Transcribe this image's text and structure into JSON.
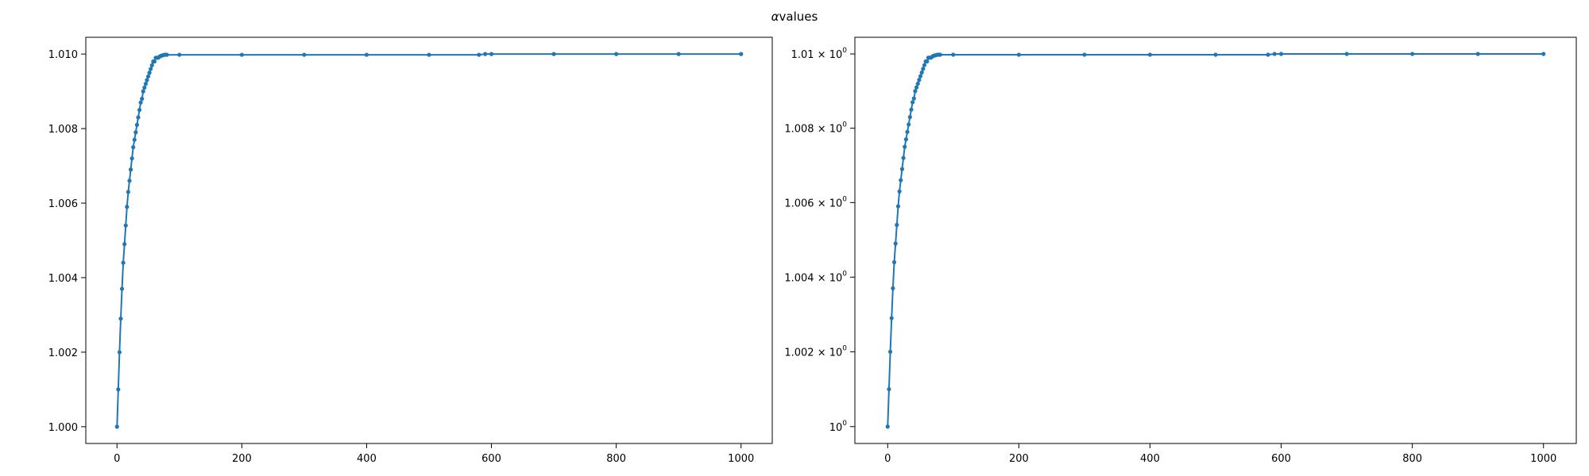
{
  "figure": {
    "title_prefix": "α",
    "title_main": "values"
  },
  "chart_data": [
    {
      "type": "line",
      "marker": "dot",
      "color": "#1f77b4",
      "yscale": "linear",
      "xlim": [
        -50,
        1050
      ],
      "ylim": [
        0.99955,
        1.01045
      ],
      "x_ticks": [
        0,
        200,
        400,
        600,
        800,
        1000
      ],
      "x_tick_labels": [
        "0",
        "200",
        "400",
        "600",
        "800",
        "1000"
      ],
      "y_ticks": [
        1.0,
        1.002,
        1.004,
        1.006,
        1.008,
        1.01
      ],
      "y_tick_labels": [
        "1.000",
        "1.002",
        "1.004",
        "1.006",
        "1.008",
        "1.010"
      ],
      "series": [
        {
          "x": [
            0,
            2,
            4,
            6,
            8,
            10,
            12,
            14,
            16,
            18,
            20,
            22,
            24,
            26,
            28,
            30,
            32,
            34,
            36,
            38,
            40,
            42,
            44,
            46,
            48,
            50,
            52,
            54,
            56,
            58,
            60,
            62,
            64,
            66,
            68,
            70,
            72,
            74,
            76,
            78,
            80,
            100,
            200,
            300,
            400,
            500,
            580,
            590,
            600,
            700,
            800,
            900,
            1000
          ],
          "y": [
            1.0,
            1.001,
            1.002,
            1.0029,
            1.0037,
            1.0044,
            1.0049,
            1.0054,
            1.0059,
            1.0063,
            1.0066,
            1.0069,
            1.0072,
            1.0075,
            1.0077,
            1.0079,
            1.0081,
            1.0083,
            1.0085,
            1.0087,
            1.0088,
            1.009,
            1.0091,
            1.0092,
            1.0093,
            1.0094,
            1.0095,
            1.0096,
            1.0097,
            1.0098,
            1.0098,
            1.0099,
            1.0099,
            1.0099,
            1.00993,
            1.00995,
            1.00996,
            1.00997,
            1.00998,
            1.00998,
            1.00998,
            1.00998,
            1.00998,
            1.00998,
            1.00998,
            1.00998,
            1.00998,
            1.01,
            1.01,
            1.01,
            1.01,
            1.01,
            1.01
          ]
        }
      ]
    },
    {
      "type": "line",
      "marker": "dot",
      "color": "#1f77b4",
      "yscale": "log",
      "xlim": [
        -50,
        1050
      ],
      "ylim": [
        0.99955,
        1.01045
      ],
      "x_ticks": [
        0,
        200,
        400,
        600,
        800,
        1000
      ],
      "x_tick_labels": [
        "0",
        "200",
        "400",
        "600",
        "800",
        "1000"
      ],
      "y_ticks": [
        1.0,
        1.002,
        1.004,
        1.006,
        1.008,
        1.01
      ],
      "y_tick_bases": [
        "",
        "1.002 × ",
        "1.004 × ",
        "1.006 × ",
        "1.008 × ",
        "1.01 × "
      ],
      "y_tick_labels": [
        "10",
        "10",
        "10",
        "10",
        "10",
        "10"
      ],
      "y_tick_exponent": "0",
      "series": [
        {
          "x": [
            0,
            2,
            4,
            6,
            8,
            10,
            12,
            14,
            16,
            18,
            20,
            22,
            24,
            26,
            28,
            30,
            32,
            34,
            36,
            38,
            40,
            42,
            44,
            46,
            48,
            50,
            52,
            54,
            56,
            58,
            60,
            62,
            64,
            66,
            68,
            70,
            72,
            74,
            76,
            78,
            80,
            100,
            200,
            300,
            400,
            500,
            580,
            590,
            600,
            700,
            800,
            900,
            1000
          ],
          "y": [
            1.0,
            1.001,
            1.002,
            1.0029,
            1.0037,
            1.0044,
            1.0049,
            1.0054,
            1.0059,
            1.0063,
            1.0066,
            1.0069,
            1.0072,
            1.0075,
            1.0077,
            1.0079,
            1.0081,
            1.0083,
            1.0085,
            1.0087,
            1.0088,
            1.009,
            1.0091,
            1.0092,
            1.0093,
            1.0094,
            1.0095,
            1.0096,
            1.0097,
            1.0098,
            1.0098,
            1.0099,
            1.0099,
            1.0099,
            1.00993,
            1.00995,
            1.00996,
            1.00997,
            1.00998,
            1.00998,
            1.00998,
            1.00998,
            1.00998,
            1.00998,
            1.00998,
            1.00998,
            1.00998,
            1.01,
            1.01,
            1.01,
            1.01,
            1.01,
            1.01
          ]
        }
      ]
    }
  ]
}
